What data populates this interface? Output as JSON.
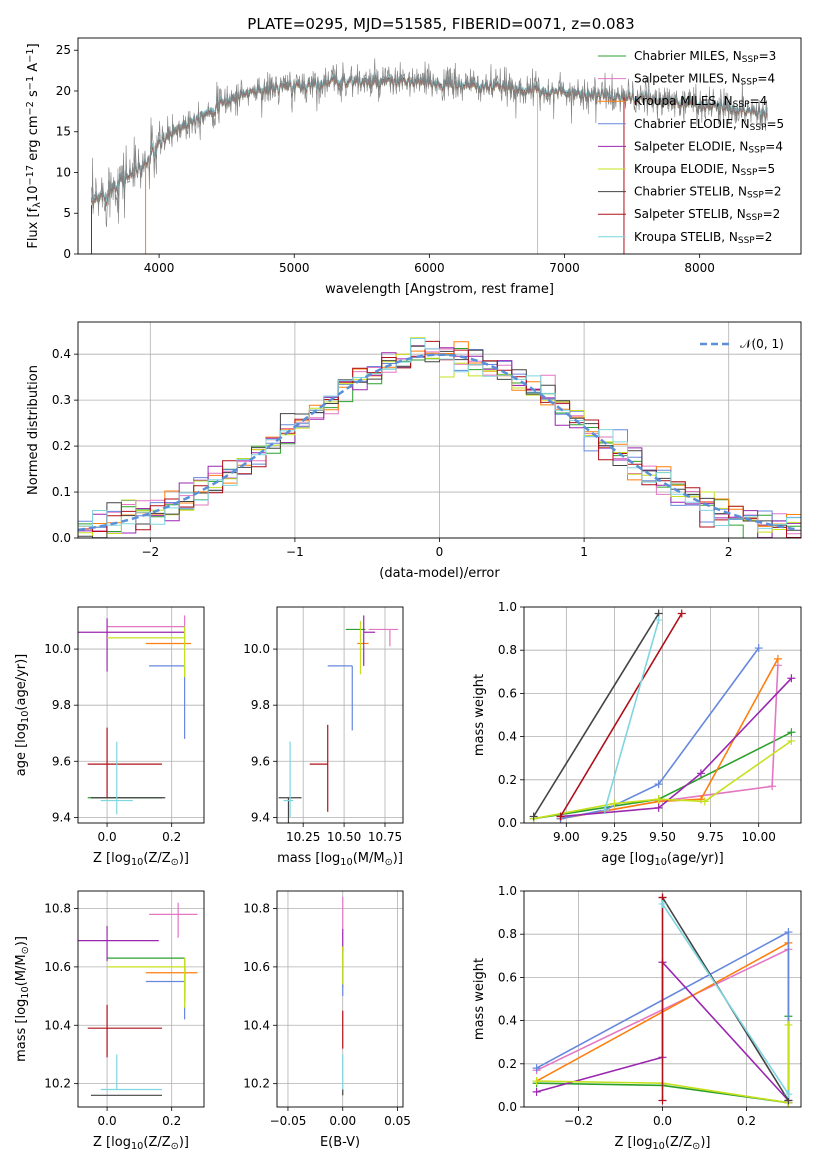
{
  "figure": {
    "title": "PLATE=0295, MJD=51585, FIBERID=0071, z=0.083"
  },
  "models": [
    {
      "label": "Chabrier MILES, N$_{SSP}$=3",
      "color": "#2ca02c"
    },
    {
      "label": "Salpeter MILES, N$_{SSP}$=4",
      "color": "#e377c2"
    },
    {
      "label": "Kroupa MILES, N$_{SSP}$=4",
      "color": "#ff7f0e"
    },
    {
      "label": "Chabrier ELODIE, N$_{SSP}$=5",
      "color": "#6688dd"
    },
    {
      "label": "Salpeter ELODIE, N$_{SSP}$=4",
      "color": "#9b27b0"
    },
    {
      "label": "Kroupa ELODIE, N$_{SSP}$=5",
      "color": "#c6e01e"
    },
    {
      "label": "Chabrier STELIB, N$_{SSP}$=2",
      "color": "#444444"
    },
    {
      "label": "Salpeter STELIB, N$_{SSP}$=2",
      "color": "#b0101a"
    },
    {
      "label": "Kroupa STELIB, N$_{SSP}$=2",
      "color": "#7fd6e0"
    }
  ],
  "chart_data": [
    {
      "id": "spectrum",
      "type": "line",
      "xlabel": "wavelength [Angstrom, rest frame]",
      "ylabel": "Flux [f$_\\lambda$10$^{-17}$ erg cm$^{-2}$ s$^{-1}$ A$^{-1}$]",
      "xlim": [
        3400,
        8750
      ],
      "ylim": [
        0,
        26.5
      ],
      "xticks": [
        4000,
        5000,
        6000,
        7000,
        8000
      ],
      "yticks": [
        0,
        5,
        10,
        15,
        20,
        25
      ],
      "data_color": "#808080",
      "continuum": {
        "x": [
          3500,
          3600,
          3700,
          3800,
          3900,
          4000,
          4100,
          4200,
          4300,
          4400,
          4500,
          4600,
          4700,
          4800,
          4900,
          5000,
          5200,
          5400,
          5600,
          5800,
          6000,
          6200,
          6400,
          6600,
          6800,
          7000,
          7200,
          7400,
          7600,
          7800,
          8000,
          8200,
          8400,
          8500
        ],
        "y": [
          6.0,
          7.5,
          9.0,
          10.0,
          11.0,
          13.5,
          15.0,
          16.0,
          17.0,
          17.8,
          18.8,
          19.5,
          20.0,
          20.2,
          20.5,
          20.5,
          21.0,
          21.3,
          21.0,
          21.2,
          21.0,
          20.8,
          20.6,
          20.4,
          20.0,
          19.9,
          19.6,
          19.3,
          19.0,
          18.7,
          18.4,
          18.0,
          17.5,
          17.3
        ]
      },
      "legend": "upper right"
    },
    {
      "id": "residuals",
      "type": "line",
      "xlabel": "(data-model)/error",
      "ylabel": "Normed distribution",
      "xlim": [
        -2.5,
        2.5
      ],
      "ylim": [
        0,
        0.47
      ],
      "xticks": [
        -2,
        -1,
        0,
        1,
        2
      ],
      "xticklabels": [
        "−2",
        "−1",
        "0",
        "1",
        "2"
      ],
      "yticks": [
        0.0,
        0.1,
        0.2,
        0.3,
        0.4
      ],
      "yticklabels": [
        "0.0",
        "0.1",
        "0.2",
        "0.3",
        "0.4"
      ],
      "grid": true,
      "reference": {
        "label": "$\\mathcal{N}(0, 1)$",
        "color": "#5b8fd8",
        "mean": 0,
        "sigma": 1
      },
      "legend": "upper right"
    },
    {
      "id": "age-vs-Z",
      "type": "scatter",
      "xlabel": "Z [log$_{10}$(Z/Z$_\\odot$)]",
      "ylabel": "age  [log$_{10}$(age/yr)]",
      "xlim": [
        -0.09,
        0.3
      ],
      "ylim": [
        9.38,
        10.15
      ],
      "xticks": [
        0.0,
        0.2
      ],
      "xticklabels": [
        "0.0",
        "0.2"
      ],
      "yticks": [
        9.4,
        9.6,
        9.8,
        10.0
      ],
      "yticklabels": [
        "9.4",
        "9.6",
        "9.8",
        "10.0"
      ],
      "grid": true,
      "points": [
        {
          "x": 0.0,
          "y": 9.47,
          "xerr": [
            0.06,
            0.17
          ],
          "yerr": [
            0.0,
            0.0
          ],
          "model": 0
        },
        {
          "x": 0.24,
          "y": 10.08,
          "xerr": [
            0.24,
            0.0
          ],
          "yerr": [
            0.07,
            0.04
          ],
          "model": 1
        },
        {
          "x": 0.24,
          "y": 10.02,
          "xerr": [
            0.12,
            0.02
          ],
          "yerr": [
            0.0,
            0.0
          ],
          "model": 2
        },
        {
          "x": 0.24,
          "y": 9.94,
          "xerr": [
            0.11,
            0.0
          ],
          "yerr": [
            0.26,
            0.0
          ],
          "model": 3
        },
        {
          "x": 0.0,
          "y": 10.06,
          "xerr": [
            0.09,
            0.24
          ],
          "yerr": [
            0.14,
            0.05
          ],
          "model": 4
        },
        {
          "x": 0.24,
          "y": 10.04,
          "xerr": [
            0.24,
            0.0
          ],
          "yerr": [
            0.14,
            0.04
          ],
          "model": 5
        },
        {
          "x": 0.0,
          "y": 9.47,
          "xerr": [
            0.05,
            0.18
          ],
          "yerr": [
            0.0,
            0.0
          ],
          "model": 6
        },
        {
          "x": 0.0,
          "y": 9.59,
          "xerr": [
            0.06,
            0.17
          ],
          "yerr": [
            0.12,
            0.13
          ],
          "model": 7
        },
        {
          "x": 0.03,
          "y": 9.46,
          "xerr": [
            0.05,
            0.05
          ],
          "yerr": [
            0.05,
            0.21
          ],
          "model": 8
        }
      ]
    },
    {
      "id": "age-vs-mass",
      "type": "scatter",
      "xlabel": "mass [log$_{10}$(M/M$_\\odot$)]",
      "ylabel": "",
      "xlim": [
        10.09,
        10.86
      ],
      "ylim": [
        9.38,
        10.15
      ],
      "xticks": [
        10.25,
        10.5,
        10.75
      ],
      "xticklabels": [
        "10.25",
        "10.50",
        "10.75"
      ],
      "yticks": [
        9.4,
        9.6,
        9.8,
        10.0
      ],
      "yticklabels": [
        "9.4",
        "9.6",
        "9.8",
        "10.0"
      ],
      "grid": true,
      "points": [
        {
          "x": 10.63,
          "y": 10.07,
          "xerr": [
            0.12,
            0.0
          ],
          "yerr": [
            0.0,
            0.0
          ],
          "model": 0
        },
        {
          "x": 10.78,
          "y": 10.07,
          "xerr": [
            0.13,
            0.05
          ],
          "yerr": [
            0.06,
            0.0
          ],
          "model": 1
        },
        {
          "x": 10.6,
          "y": 10.02,
          "xerr": [
            0.02,
            0.05
          ],
          "yerr": [
            0.0,
            0.0
          ],
          "model": 2
        },
        {
          "x": 10.55,
          "y": 9.94,
          "xerr": [
            0.15,
            0.0
          ],
          "yerr": [
            0.23,
            0.0
          ],
          "model": 3
        },
        {
          "x": 10.62,
          "y": 10.06,
          "xerr": [
            0.0,
            0.07
          ],
          "yerr": [
            0.12,
            0.06
          ],
          "model": 4
        },
        {
          "x": 10.6,
          "y": 10.04,
          "xerr": [
            0.0,
            0.0
          ],
          "yerr": [
            0.13,
            0.06
          ],
          "model": 5
        },
        {
          "x": 10.16,
          "y": 9.47,
          "xerr": [
            0.06,
            0.08
          ],
          "yerr": [
            0.09,
            0.0
          ],
          "model": 6
        },
        {
          "x": 10.4,
          "y": 9.59,
          "xerr": [
            0.11,
            0.0
          ],
          "yerr": [
            0.17,
            0.14
          ],
          "model": 7
        },
        {
          "x": 10.17,
          "y": 9.46,
          "xerr": [
            0.04,
            0.02
          ],
          "yerr": [
            0.06,
            0.21
          ],
          "model": 8
        }
      ]
    },
    {
      "id": "massweight-vs-age",
      "type": "line",
      "xlabel": "age  [log$_{10}$(age/yr)]",
      "ylabel": "mass weight",
      "xlim": [
        8.78,
        10.22
      ],
      "ylim": [
        0.0,
        1.0
      ],
      "xticks": [
        9.0,
        9.25,
        9.5,
        9.75,
        10.0
      ],
      "xticklabels": [
        "9.00",
        "9.25",
        "9.50",
        "9.75",
        "10.00"
      ],
      "yticks": [
        0.0,
        0.2,
        0.4,
        0.6,
        0.8,
        1.0
      ],
      "yticklabels": [
        "0.0",
        "0.2",
        "0.4",
        "0.6",
        "0.8",
        "1.0"
      ],
      "grid": true,
      "series": [
        {
          "model": 0,
          "x": [
            8.83,
            9.48,
            10.17
          ],
          "y": [
            0.02,
            0.11,
            0.42
          ]
        },
        {
          "model": 1,
          "x": [
            8.97,
            9.48,
            10.07,
            10.1
          ],
          "y": [
            0.02,
            0.1,
            0.17,
            0.73
          ]
        },
        {
          "model": 2,
          "x": [
            8.97,
            9.48,
            9.7,
            10.1
          ],
          "y": [
            0.02,
            0.1,
            0.11,
            0.76
          ]
        },
        {
          "model": 3,
          "x": [
            8.97,
            9.2,
            9.48,
            10.0
          ],
          "y": [
            0.02,
            0.06,
            0.18,
            0.81
          ]
        },
        {
          "model": 4,
          "x": [
            8.97,
            9.48,
            9.7,
            10.17
          ],
          "y": [
            0.03,
            0.07,
            0.23,
            0.67
          ]
        },
        {
          "model": 5,
          "x": [
            8.83,
            9.25,
            9.48,
            9.72,
            10.17
          ],
          "y": [
            0.02,
            0.09,
            0.11,
            0.1,
            0.38
          ]
        },
        {
          "model": 6,
          "x": [
            8.83,
            9.48
          ],
          "y": [
            0.03,
            0.97
          ]
        },
        {
          "model": 7,
          "x": [
            8.97,
            9.6
          ],
          "y": [
            0.03,
            0.97
          ]
        },
        {
          "model": 8,
          "x": [
            9.2,
            9.48
          ],
          "y": [
            0.06,
            0.94
          ]
        }
      ]
    },
    {
      "id": "mass-vs-Z",
      "type": "scatter",
      "xlabel": "Z [log$_{10}$(Z/Z$_\\odot$)]",
      "ylabel": "mass [log$_{10}$(M/M$_\\odot$)]",
      "xlim": [
        -0.09,
        0.3
      ],
      "ylim": [
        10.12,
        10.86
      ],
      "xticks": [
        0.0,
        0.2
      ],
      "xticklabels": [
        "0.0",
        "0.2"
      ],
      "yticks": [
        10.2,
        10.4,
        10.6,
        10.8
      ],
      "yticklabels": [
        "10.2",
        "10.4",
        "10.6",
        "10.8"
      ],
      "grid": true,
      "points": [
        {
          "x": 0.24,
          "y": 10.63,
          "xerr": [
            0.24,
            0.0
          ],
          "yerr": [
            0.15,
            0.0
          ],
          "model": 0
        },
        {
          "x": 0.22,
          "y": 10.78,
          "xerr": [
            0.09,
            0.06
          ],
          "yerr": [
            0.08,
            0.04
          ],
          "model": 1
        },
        {
          "x": 0.24,
          "y": 10.58,
          "xerr": [
            0.12,
            0.04
          ],
          "yerr": [
            0.07,
            0.02
          ],
          "model": 2
        },
        {
          "x": 0.24,
          "y": 10.55,
          "xerr": [
            0.12,
            0.0
          ],
          "yerr": [
            0.13,
            0.05
          ],
          "model": 3
        },
        {
          "x": 0.0,
          "y": 10.69,
          "xerr": [
            0.09,
            0.16
          ],
          "yerr": [
            0.07,
            0.05
          ],
          "model": 4
        },
        {
          "x": 0.24,
          "y": 10.6,
          "xerr": [
            0.24,
            0.0
          ],
          "yerr": [
            0.14,
            0.03
          ],
          "model": 5
        },
        {
          "x": 0.0,
          "y": 10.16,
          "xerr": [
            0.05,
            0.17
          ],
          "yerr": [
            0.0,
            0.0
          ],
          "model": 6
        },
        {
          "x": 0.0,
          "y": 10.39,
          "xerr": [
            0.06,
            0.17
          ],
          "yerr": [
            0.1,
            0.08
          ],
          "model": 7
        },
        {
          "x": 0.03,
          "y": 10.18,
          "xerr": [
            0.05,
            0.14
          ],
          "yerr": [
            0.0,
            0.12
          ],
          "model": 8
        }
      ]
    },
    {
      "id": "mass-vs-EBV",
      "type": "scatter",
      "xlabel": "E(B-V)",
      "ylabel": "",
      "xlim": [
        -0.06,
        0.055
      ],
      "ylim": [
        10.12,
        10.86
      ],
      "xticks": [
        -0.05,
        0.0,
        0.05
      ],
      "xticklabels": [
        "−0.05",
        "0.00",
        "0.05"
      ],
      "yticks": [
        10.2,
        10.4,
        10.6,
        10.8
      ],
      "yticklabels": [
        "10.2",
        "10.4",
        "10.6",
        "10.8"
      ],
      "grid": true,
      "points": [
        {
          "x": 0.0,
          "y": 10.63,
          "xerr": [
            0,
            0
          ],
          "yerr": [
            0.05,
            0.04
          ],
          "model": 0
        },
        {
          "x": 0.0,
          "y": 10.78,
          "xerr": [
            0,
            0
          ],
          "yerr": [
            0.05,
            0.06
          ],
          "model": 1
        },
        {
          "x": 0.0,
          "y": 10.58,
          "xerr": [
            0,
            0
          ],
          "yerr": [
            0.05,
            0.04
          ],
          "model": 2
        },
        {
          "x": 0.0,
          "y": 10.55,
          "xerr": [
            0,
            0
          ],
          "yerr": [
            0.05,
            0.05
          ],
          "model": 3
        },
        {
          "x": 0.0,
          "y": 10.69,
          "xerr": [
            0,
            0
          ],
          "yerr": [
            0.04,
            0.04
          ],
          "model": 4
        },
        {
          "x": 0.0,
          "y": 10.6,
          "xerr": [
            0,
            0
          ],
          "yerr": [
            0.06,
            0.07
          ],
          "model": 5
        },
        {
          "x": 0.0,
          "y": 10.16,
          "xerr": [
            0,
            0
          ],
          "yerr": [
            0.0,
            0.02
          ],
          "model": 6
        },
        {
          "x": 0.0,
          "y": 10.39,
          "xerr": [
            0,
            0
          ],
          "yerr": [
            0.07,
            0.06
          ],
          "model": 7
        },
        {
          "x": 0.0,
          "y": 10.18,
          "xerr": [
            0,
            0
          ],
          "yerr": [
            0.0,
            0.12
          ],
          "model": 8
        }
      ]
    },
    {
      "id": "massweight-vs-Z",
      "type": "line",
      "xlabel": "Z [log$_{10}$(Z/Z$_\\odot$)]",
      "ylabel": "mass weight",
      "xlim": [
        -0.33,
        0.33
      ],
      "ylim": [
        0.0,
        1.0
      ],
      "xticks": [
        -0.2,
        0.0,
        0.2
      ],
      "xticklabels": [
        "−0.2",
        "0.0",
        "0.2"
      ],
      "yticks": [
        0.0,
        0.2,
        0.4,
        0.6,
        0.8,
        1.0
      ],
      "yticklabels": [
        "0.0",
        "0.2",
        "0.4",
        "0.6",
        "0.8",
        "1.0"
      ],
      "grid": true,
      "series": [
        {
          "model": 0,
          "x": [
            -0.3,
            0.0,
            0.3,
            0.3
          ],
          "y": [
            0.11,
            0.1,
            0.02,
            0.42
          ]
        },
        {
          "model": 1,
          "x": [
            -0.3,
            0.3,
            0.3
          ],
          "y": [
            0.17,
            0.73,
            0.02
          ]
        },
        {
          "model": 2,
          "x": [
            -0.3,
            0.3,
            0.3
          ],
          "y": [
            0.12,
            0.76,
            0.02
          ]
        },
        {
          "model": 3,
          "x": [
            -0.3,
            0.3,
            0.3
          ],
          "y": [
            0.18,
            0.81,
            0.02
          ]
        },
        {
          "model": 4,
          "x": [
            -0.3,
            0.0,
            0.0,
            0.3
          ],
          "y": [
            0.07,
            0.23,
            0.67,
            0.03
          ]
        },
        {
          "model": 5,
          "x": [
            -0.3,
            0.0,
            0.3,
            0.3
          ],
          "y": [
            0.12,
            0.11,
            0.02,
            0.38
          ]
        },
        {
          "model": 6,
          "x": [
            0.0,
            0.3
          ],
          "y": [
            0.97,
            0.03
          ]
        },
        {
          "model": 7,
          "x": [
            0.0,
            0.0
          ],
          "y": [
            0.97,
            0.03
          ]
        },
        {
          "model": 8,
          "x": [
            0.0,
            0.3
          ],
          "y": [
            0.94,
            0.06
          ]
        }
      ]
    }
  ]
}
